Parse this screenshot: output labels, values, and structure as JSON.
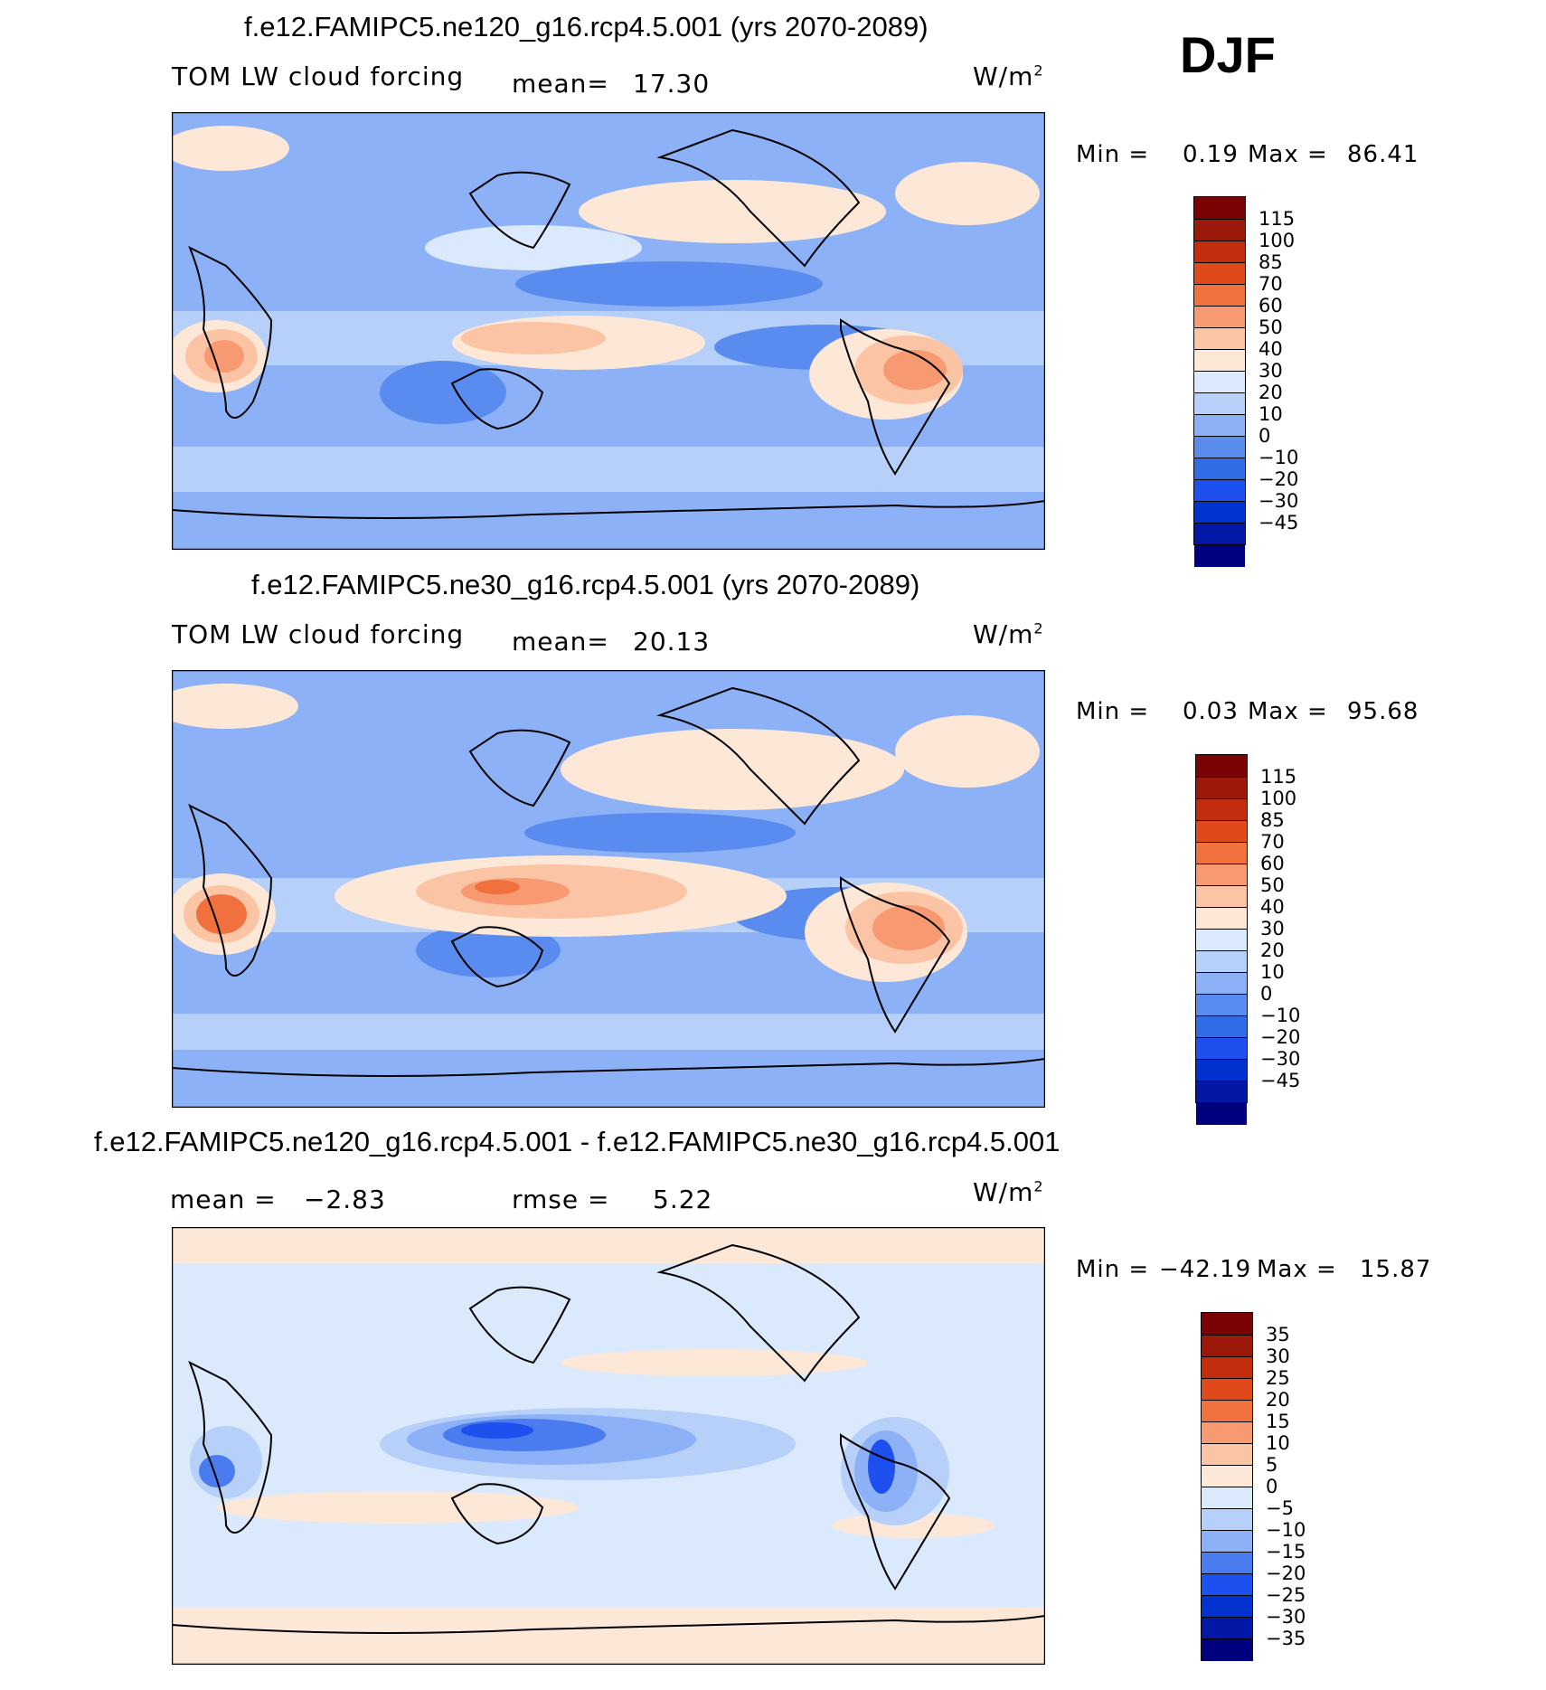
{
  "season": "DJF",
  "colors": {
    "land_outline": "#000000",
    "main_scale": [
      "#00007f",
      "#0018a5",
      "#0032d0",
      "#1e50f0",
      "#2f6ce6",
      "#5a8cf0",
      "#8db1f7",
      "#b6d0fa",
      "#dbe9fc",
      "#fde8d8",
      "#fbc5a5",
      "#f79a72",
      "#f0703e",
      "#e0491a",
      "#c12d0d",
      "#9c1808",
      "#7a0404"
    ],
    "diff_scale": [
      "#00007f",
      "#0018a5",
      "#0032d0",
      "#1e50f0",
      "#4a7cf0",
      "#8db1f7",
      "#b6d0fa",
      "#dbe9fc",
      "#fde8d8",
      "#fbc5a5",
      "#f79a72",
      "#f0703e",
      "#e0491a",
      "#c12d0d",
      "#9c1808",
      "#7a0404"
    ]
  },
  "panels": [
    {
      "title": "f.e12.FAMIPC5.ne120_g16.rcp4.5.001 (yrs 2070-2089)",
      "left_label": "TOM LW cloud forcing",
      "stat_label": "mean=",
      "stat_value": "17.30",
      "units_text": "W/m",
      "units_exp": "2",
      "min_label": "Min =",
      "min_value": "0.19",
      "max_label": "Max =",
      "max_value": "86.41",
      "colorbar_labels": [
        "115",
        "100",
        "85",
        "70",
        "60",
        "50",
        "40",
        "30",
        "20",
        "10",
        "0",
        "−10",
        "−20",
        "−30",
        "−45"
      ]
    },
    {
      "title": "f.e12.FAMIPC5.ne30_g16.rcp4.5.001 (yrs 2070-2089)",
      "left_label": "TOM LW cloud forcing",
      "stat_label": "mean=",
      "stat_value": "20.13",
      "units_text": "W/m",
      "units_exp": "2",
      "min_label": "Min =",
      "min_value": "0.03",
      "max_label": "Max =",
      "max_value": "95.68",
      "colorbar_labels": [
        "115",
        "100",
        "85",
        "70",
        "60",
        "50",
        "40",
        "30",
        "20",
        "10",
        "0",
        "−10",
        "−20",
        "−30",
        "−45"
      ]
    },
    {
      "title": "f.e12.FAMIPC5.ne120_g16.rcp4.5.001 - f.e12.FAMIPC5.ne30_g16.rcp4.5.001",
      "left_label": "mean =",
      "left_value": "−2.83",
      "stat_label": "rmse =",
      "stat_value": "5.22",
      "units_text": "W/m",
      "units_exp": "2",
      "min_label": "Min =",
      "min_value": "−42.19",
      "max_label": "Max =",
      "max_value": "15.87",
      "colorbar_labels": [
        "35",
        "30",
        "25",
        "20",
        "15",
        "10",
        "5",
        "0",
        "−5",
        "−10",
        "−15",
        "−20",
        "−25",
        "−30",
        "−35"
      ]
    }
  ],
  "chart_data": {
    "type": "heatmap",
    "variable": "TOM LW cloud forcing",
    "units": "W/m2",
    "season": "DJF",
    "maps": [
      {
        "case": "f.e12.FAMIPC5.ne120_g16.rcp4.5.001",
        "years": "2070-2089",
        "mean": 17.3,
        "min": 0.19,
        "max": 86.41,
        "contour_levels": [
          -45,
          -30,
          -20,
          -10,
          0,
          10,
          20,
          30,
          40,
          50,
          60,
          70,
          85,
          100,
          115
        ]
      },
      {
        "case": "f.e12.FAMIPC5.ne30_g16.rcp4.5.001",
        "years": "2070-2089",
        "mean": 20.13,
        "min": 0.03,
        "max": 95.68,
        "contour_levels": [
          -45,
          -30,
          -20,
          -10,
          0,
          10,
          20,
          30,
          40,
          50,
          60,
          70,
          85,
          100,
          115
        ]
      },
      {
        "case": "difference",
        "mean": -2.83,
        "rmse": 5.22,
        "min": -42.19,
        "max": 15.87,
        "contour_levels": [
          -35,
          -30,
          -25,
          -20,
          -15,
          -10,
          -5,
          0,
          5,
          10,
          15,
          20,
          25,
          30,
          35
        ]
      }
    ]
  }
}
